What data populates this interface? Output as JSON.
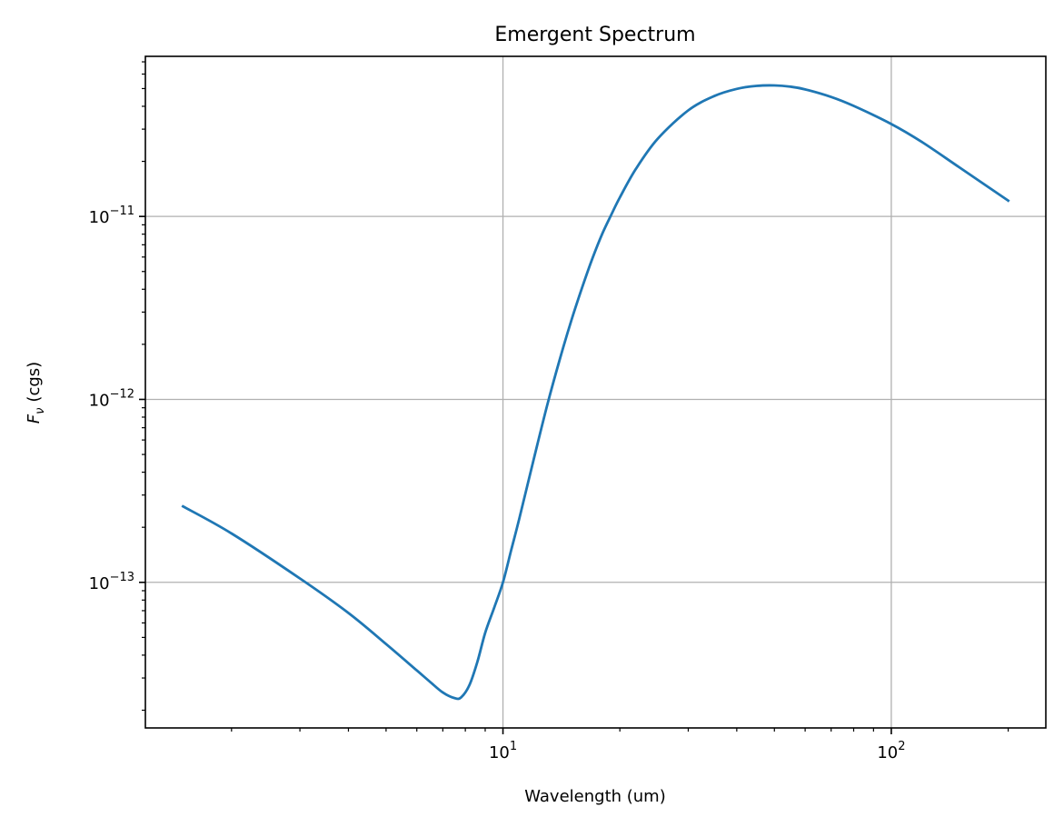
{
  "chart_data": {
    "type": "line",
    "title": "Emergent Spectrum",
    "xlabel": "Wavelength (um)",
    "ylabel_symbol": "F",
    "ylabel_subscript": "ν",
    "ylabel_unit": "(cgs)",
    "xscale": "log",
    "yscale": "log",
    "xlim": [
      1.2,
      250
    ],
    "ylim": [
      1.6e-14,
      7.5e-11
    ],
    "grid": true,
    "x_ticks": [
      {
        "value": 10,
        "base": "10",
        "exp": "1"
      },
      {
        "value": 100,
        "base": "10",
        "exp": "2"
      }
    ],
    "y_ticks": [
      {
        "value": 1e-13,
        "base": "10",
        "exp": "−13"
      },
      {
        "value": 1e-12,
        "base": "10",
        "exp": "−12"
      },
      {
        "value": 1e-11,
        "base": "10",
        "exp": "−11"
      }
    ],
    "series": [
      {
        "color": "#1f77b4",
        "x": [
          1.5,
          2.0,
          3.0,
          4.0,
          5.0,
          6.0,
          6.5,
          7.0,
          7.5,
          7.8,
          8.2,
          8.6,
          9.0,
          9.5,
          10.0,
          10.5,
          11.0,
          12.0,
          13.0,
          14.0,
          15.0,
          16.0,
          17.0,
          18.0,
          19.0,
          20.0,
          22.0,
          25.0,
          30.0,
          35.0,
          40.0,
          45.0,
          50.0,
          55.0,
          60.0,
          70.0,
          80.0,
          100.0,
          120.0,
          150.0,
          200.0
        ],
        "y": [
          2.6e-13,
          1.85e-13,
          1.05e-13,
          6.8e-14,
          4.6e-14,
          3.3e-14,
          2.85e-14,
          2.5e-14,
          2.33e-14,
          2.35e-14,
          2.75e-14,
          3.7e-14,
          5.3e-14,
          7.3e-14,
          1e-13,
          1.5e-13,
          2.2e-13,
          4.7e-13,
          9.3e-13,
          1.65e-12,
          2.7e-12,
          4.1e-12,
          5.9e-12,
          8e-12,
          1.02e-11,
          1.27e-11,
          1.82e-11,
          2.65e-11,
          3.8e-11,
          4.55e-11,
          4.98e-11,
          5.17e-11,
          5.2e-11,
          5.12e-11,
          4.95e-11,
          4.5e-11,
          4.02e-11,
          3.2e-11,
          2.55e-11,
          1.85e-11,
          1.22e-11
        ]
      }
    ]
  }
}
